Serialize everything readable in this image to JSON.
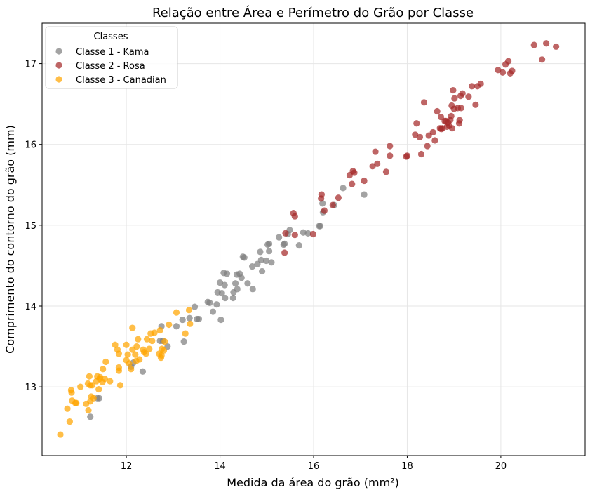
{
  "chart_data": {
    "type": "scatter",
    "title": "Relação entre Área e Perímetro do Grão por Classe",
    "xlabel": "Medida da área do grão (mm²)",
    "ylabel": "Comprimento do contorno do grão (mm)",
    "xlim": [
      10.2,
      21.8
    ],
    "ylim": [
      12.15,
      17.5
    ],
    "xticks": [
      12,
      14,
      16,
      18,
      20
    ],
    "yticks": [
      13,
      14,
      15,
      16,
      17
    ],
    "grid": true,
    "legend": {
      "title": "Classes",
      "position": "top-left"
    },
    "series": [
      {
        "name": "Classe 1 - Kama",
        "color": "#808080",
        "points": [
          [
            11.23,
            12.63
          ],
          [
            11.42,
            12.86
          ],
          [
            11.38,
            12.86
          ],
          [
            12.1,
            13.25
          ],
          [
            12.15,
            13.3
          ],
          [
            12.35,
            13.19
          ],
          [
            12.72,
            13.57
          ],
          [
            12.78,
            13.57
          ],
          [
            12.75,
            13.75
          ],
          [
            12.88,
            13.5
          ],
          [
            13.07,
            13.75
          ],
          [
            13.2,
            13.83
          ],
          [
            13.23,
            13.56
          ],
          [
            13.35,
            13.85
          ],
          [
            13.46,
            13.99
          ],
          [
            13.51,
            13.84
          ],
          [
            13.55,
            13.84
          ],
          [
            13.74,
            14.05
          ],
          [
            13.78,
            14.04
          ],
          [
            13.85,
            13.93
          ],
          [
            13.93,
            14.02
          ],
          [
            13.95,
            14.17
          ],
          [
            14.0,
            14.29
          ],
          [
            14.02,
            13.83
          ],
          [
            14.04,
            14.16
          ],
          [
            14.08,
            14.41
          ],
          [
            14.1,
            14.26
          ],
          [
            14.11,
            14.1
          ],
          [
            14.15,
            14.4
          ],
          [
            14.28,
            14.1
          ],
          [
            14.29,
            14.17
          ],
          [
            14.33,
            14.28
          ],
          [
            14.36,
            14.39
          ],
          [
            14.37,
            14.21
          ],
          [
            14.42,
            14.4
          ],
          [
            14.46,
            14.35
          ],
          [
            14.49,
            14.61
          ],
          [
            14.52,
            14.6
          ],
          [
            14.59,
            14.28
          ],
          [
            14.69,
            14.49
          ],
          [
            14.7,
            14.21
          ],
          [
            14.8,
            14.52
          ],
          [
            14.86,
            14.67
          ],
          [
            14.88,
            14.57
          ],
          [
            14.9,
            14.43
          ],
          [
            14.99,
            14.56
          ],
          [
            15.02,
            14.76
          ],
          [
            15.05,
            14.77
          ],
          [
            15.1,
            14.54
          ],
          [
            15.05,
            14.68
          ],
          [
            15.26,
            14.85
          ],
          [
            15.36,
            14.76
          ],
          [
            15.38,
            14.77
          ],
          [
            15.45,
            14.89
          ],
          [
            15.49,
            14.94
          ],
          [
            15.69,
            14.75
          ],
          [
            15.78,
            14.91
          ],
          [
            15.88,
            14.9
          ],
          [
            16.12,
            14.99
          ],
          [
            16.14,
            14.99
          ],
          [
            16.19,
            15.27
          ],
          [
            16.2,
            15.16
          ],
          [
            16.44,
            15.25
          ],
          [
            16.63,
            15.46
          ],
          [
            17.08,
            15.38
          ]
        ]
      },
      {
        "name": "Classe 2 - Rosa",
        "color": "#a52a2a",
        "points": [
          [
            15.38,
            14.66
          ],
          [
            15.4,
            14.9
          ],
          [
            15.57,
            15.15
          ],
          [
            15.6,
            15.11
          ],
          [
            15.6,
            14.88
          ],
          [
            15.99,
            14.89
          ],
          [
            16.16,
            15.33
          ],
          [
            16.17,
            15.38
          ],
          [
            16.23,
            15.18
          ],
          [
            16.41,
            15.25
          ],
          [
            16.53,
            15.34
          ],
          [
            16.77,
            15.62
          ],
          [
            16.82,
            15.51
          ],
          [
            16.84,
            15.67
          ],
          [
            16.87,
            15.65
          ],
          [
            17.08,
            15.55
          ],
          [
            17.26,
            15.73
          ],
          [
            17.32,
            15.91
          ],
          [
            17.36,
            15.76
          ],
          [
            17.55,
            15.66
          ],
          [
            17.63,
            15.86
          ],
          [
            17.63,
            15.98
          ],
          [
            17.98,
            15.85
          ],
          [
            18.0,
            15.86
          ],
          [
            18.17,
            16.12
          ],
          [
            18.2,
            16.26
          ],
          [
            18.27,
            16.09
          ],
          [
            18.3,
            15.88
          ],
          [
            18.36,
            16.52
          ],
          [
            18.43,
            15.98
          ],
          [
            18.46,
            16.11
          ],
          [
            18.55,
            16.15
          ],
          [
            18.59,
            16.05
          ],
          [
            18.64,
            16.41
          ],
          [
            18.7,
            16.2
          ],
          [
            18.72,
            16.34
          ],
          [
            18.73,
            16.19
          ],
          [
            18.75,
            16.2
          ],
          [
            18.8,
            16.29
          ],
          [
            18.83,
            16.29
          ],
          [
            18.85,
            16.22
          ],
          [
            18.87,
            16.27
          ],
          [
            18.9,
            16.23
          ],
          [
            18.92,
            16.3
          ],
          [
            18.94,
            16.35
          ],
          [
            18.95,
            16.48
          ],
          [
            18.96,
            16.2
          ],
          [
            18.98,
            16.67
          ],
          [
            19.0,
            16.44
          ],
          [
            19.01,
            16.57
          ],
          [
            19.08,
            16.45
          ],
          [
            19.11,
            16.26
          ],
          [
            19.12,
            16.3
          ],
          [
            19.14,
            16.6
          ],
          [
            19.15,
            16.45
          ],
          [
            19.18,
            16.63
          ],
          [
            19.31,
            16.59
          ],
          [
            19.38,
            16.72
          ],
          [
            19.46,
            16.49
          ],
          [
            19.5,
            16.72
          ],
          [
            19.57,
            16.75
          ],
          [
            19.94,
            16.92
          ],
          [
            20.04,
            16.89
          ],
          [
            20.1,
            16.99
          ],
          [
            20.16,
            17.03
          ],
          [
            20.2,
            16.88
          ],
          [
            20.24,
            16.91
          ],
          [
            20.71,
            17.23
          ],
          [
            20.88,
            17.05
          ],
          [
            20.97,
            17.25
          ],
          [
            21.18,
            17.21
          ]
        ]
      },
      {
        "name": "Classe 3 - Canadian",
        "color": "#ffa500",
        "points": [
          [
            10.59,
            12.41
          ],
          [
            10.74,
            12.73
          ],
          [
            10.79,
            12.57
          ],
          [
            10.82,
            12.96
          ],
          [
            10.83,
            12.93
          ],
          [
            10.84,
            12.83
          ],
          [
            10.91,
            12.8
          ],
          [
            10.93,
            12.8
          ],
          [
            11.02,
            13.0
          ],
          [
            11.14,
            12.79
          ],
          [
            11.18,
            13.04
          ],
          [
            11.19,
            12.71
          ],
          [
            11.21,
            13.13
          ],
          [
            11.23,
            13.02
          ],
          [
            11.23,
            12.82
          ],
          [
            11.25,
            12.88
          ],
          [
            11.27,
            13.02
          ],
          [
            11.3,
            12.86
          ],
          [
            11.36,
            13.07
          ],
          [
            11.38,
            13.13
          ],
          [
            11.41,
            12.97
          ],
          [
            11.43,
            13.1
          ],
          [
            11.44,
            13.12
          ],
          [
            11.49,
            13.06
          ],
          [
            11.5,
            13.22
          ],
          [
            11.54,
            13.1
          ],
          [
            11.56,
            13.31
          ],
          [
            11.65,
            13.07
          ],
          [
            11.76,
            13.52
          ],
          [
            11.81,
            13.46
          ],
          [
            11.84,
            13.41
          ],
          [
            11.84,
            13.24
          ],
          [
            11.84,
            13.2
          ],
          [
            11.87,
            13.02
          ],
          [
            12.0,
            13.52
          ],
          [
            12.0,
            13.33
          ],
          [
            12.03,
            13.4
          ],
          [
            12.06,
            13.29
          ],
          [
            12.1,
            13.22
          ],
          [
            12.13,
            13.46
          ],
          [
            12.13,
            13.73
          ],
          [
            12.19,
            13.4
          ],
          [
            12.21,
            13.32
          ],
          [
            12.22,
            13.5
          ],
          [
            12.25,
            13.59
          ],
          [
            12.28,
            13.34
          ],
          [
            12.36,
            13.46
          ],
          [
            12.38,
            13.43
          ],
          [
            12.42,
            13.41
          ],
          [
            12.44,
            13.59
          ],
          [
            12.49,
            13.47
          ],
          [
            12.52,
            13.66
          ],
          [
            12.55,
            13.57
          ],
          [
            12.6,
            13.67
          ],
          [
            12.7,
            13.41
          ],
          [
            12.72,
            13.7
          ],
          [
            12.74,
            13.36
          ],
          [
            12.75,
            13.39
          ],
          [
            12.76,
            13.47
          ],
          [
            12.8,
            13.45
          ],
          [
            12.82,
            13.56
          ],
          [
            12.91,
            13.77
          ],
          [
            13.07,
            13.92
          ],
          [
            13.26,
            13.66
          ],
          [
            13.34,
            13.95
          ],
          [
            13.36,
            13.78
          ]
        ]
      }
    ]
  }
}
